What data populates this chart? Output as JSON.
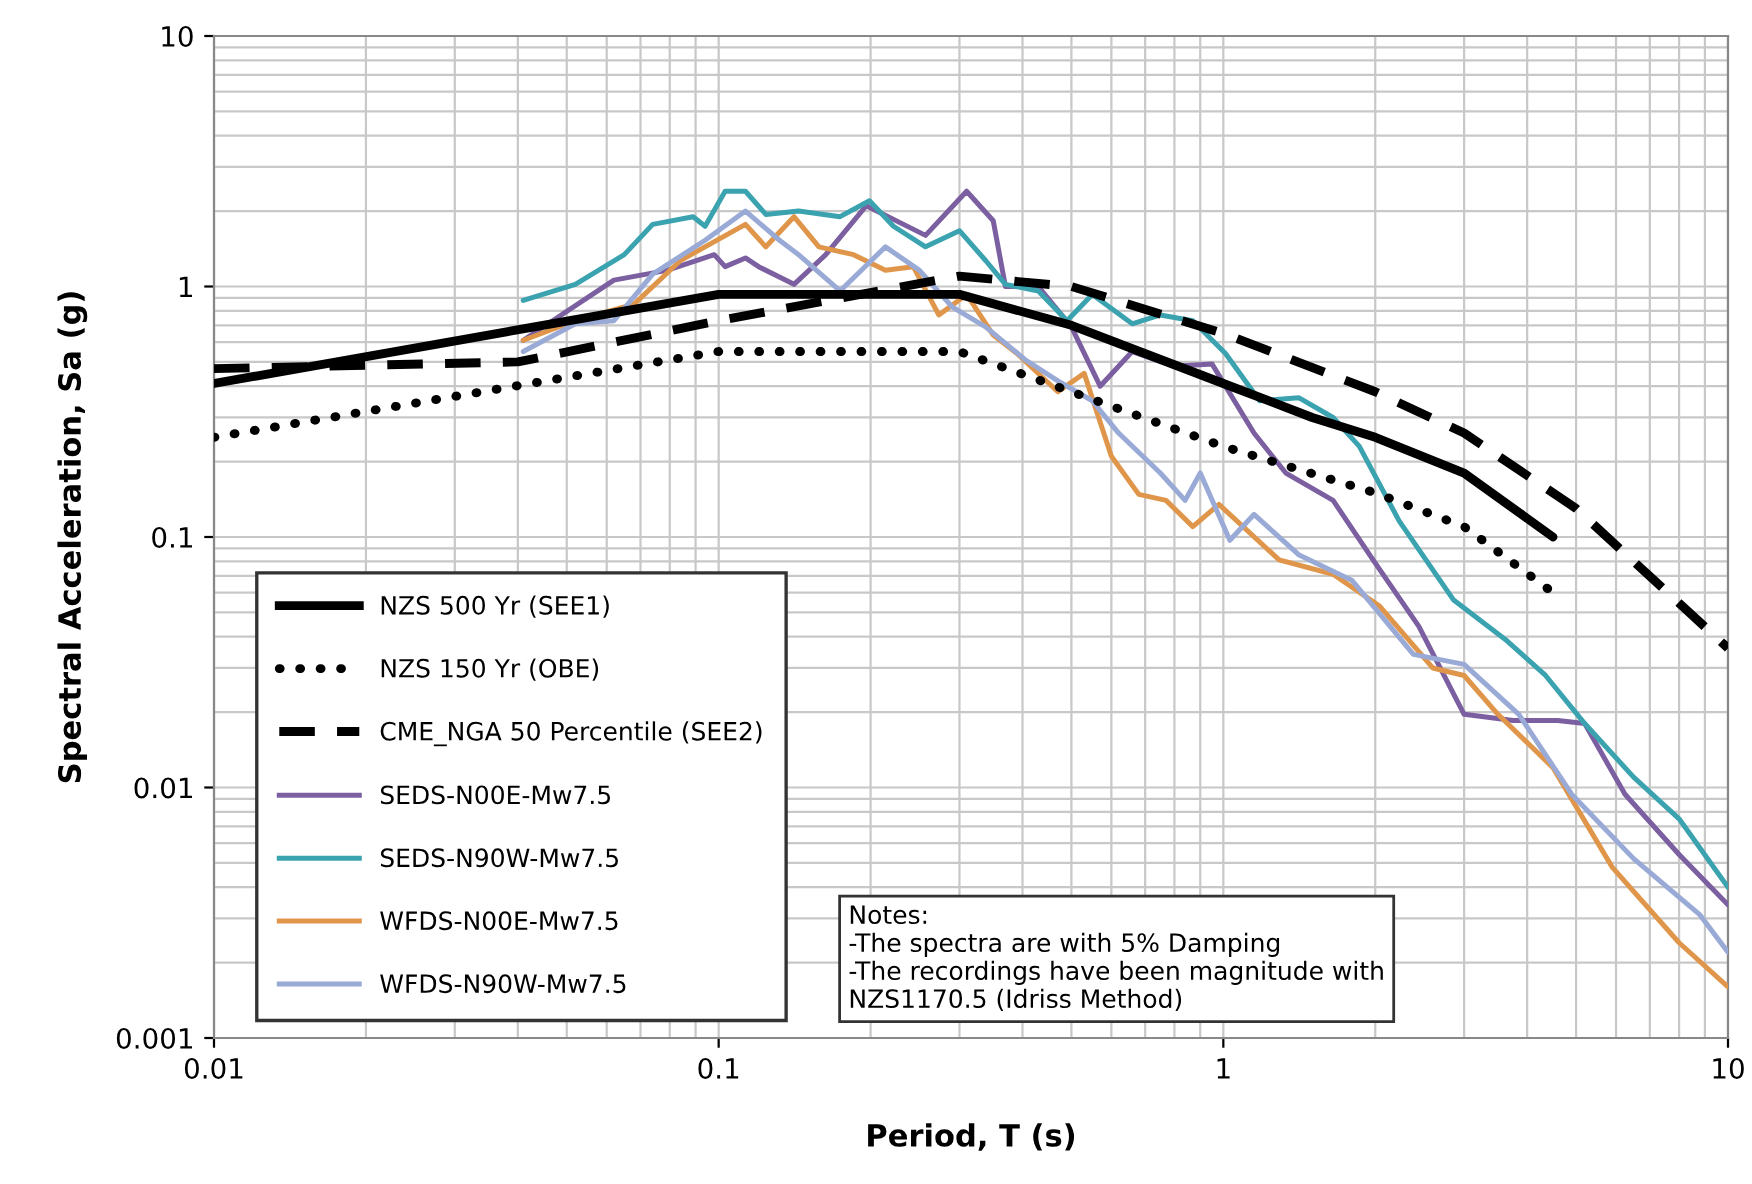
{
  "chart_data": {
    "type": "line",
    "xlabel": "Period, T (s)",
    "ylabel": "Spectral Acceleration, Sa (g)",
    "log": "xy",
    "xlim": [
      0.01,
      10
    ],
    "ylim": [
      0.001,
      10
    ],
    "xticks": [
      0.01,
      0.1,
      1,
      10
    ],
    "yticks": [
      0.001,
      0.01,
      0.1,
      1,
      10
    ],
    "grid": true,
    "legend": "bottom left",
    "marker": "none",
    "series": [
      {
        "name": "NZS 500 Yr (SEE1)",
        "color": "#000000",
        "line_style": "solid",
        "x": [
          0.01,
          0.1,
          0.3,
          0.5,
          1,
          1.5,
          2,
          3,
          4.5
        ],
        "values": [
          0.41,
          0.93,
          0.93,
          0.7,
          0.41,
          0.3,
          0.25,
          0.18,
          0.1
        ]
      },
      {
        "name": "NZS 150 Yr (OBE)",
        "color": "#000000",
        "line_style": "dotted",
        "x": [
          0.01,
          0.1,
          0.3,
          0.5,
          1,
          2,
          3,
          4.5
        ],
        "values": [
          0.25,
          0.55,
          0.55,
          0.38,
          0.23,
          0.15,
          0.11,
          0.06
        ]
      },
      {
        "name": "CME_NGA 50 Percentile (SEE2)",
        "color": "#000000",
        "line_style": "dashed",
        "x": [
          0.01,
          0.04,
          0.1,
          0.3,
          0.5,
          1,
          2,
          3,
          5,
          10
        ],
        "values": [
          0.47,
          0.5,
          0.73,
          1.1,
          1.0,
          0.65,
          0.38,
          0.26,
          0.13,
          0.036
        ]
      },
      {
        "name": "SEDS-N00E-Mw7.5",
        "color": "#7b5fa0",
        "line_style": "solid",
        "x": [
          0.041,
          0.062,
          0.079,
          0.098,
          0.103,
          0.113,
          0.12,
          0.141,
          0.163,
          0.196,
          0.257,
          0.31,
          0.35,
          0.37,
          0.43,
          0.5,
          0.57,
          0.66,
          0.8,
          0.95,
          1.15,
          1.33,
          1.65,
          1.98,
          2.44,
          3.0,
          3.75,
          4.6,
          5.2,
          6.25,
          8,
          10
        ],
        "values": [
          0.61,
          1.06,
          1.16,
          1.34,
          1.2,
          1.3,
          1.2,
          1.02,
          1.34,
          2.1,
          1.6,
          2.4,
          1.83,
          1.0,
          1.0,
          0.69,
          0.4,
          0.55,
          0.48,
          0.49,
          0.26,
          0.18,
          0.14,
          0.081,
          0.044,
          0.0196,
          0.0185,
          0.0185,
          0.018,
          0.0094,
          0.0054,
          0.0034
        ]
      },
      {
        "name": "SEDS-N90W-Mw7.5",
        "color": "#3ba3b0",
        "line_style": "solid",
        "x": [
          0.041,
          0.052,
          0.065,
          0.074,
          0.089,
          0.094,
          0.103,
          0.113,
          0.124,
          0.144,
          0.174,
          0.199,
          0.222,
          0.257,
          0.3,
          0.338,
          0.37,
          0.43,
          0.49,
          0.55,
          0.66,
          0.75,
          0.87,
          1.01,
          1.18,
          1.41,
          1.65,
          1.86,
          2.23,
          2.86,
          3.62,
          4.35,
          5.2,
          6.5,
          8,
          10
        ],
        "values": [
          0.88,
          1.02,
          1.34,
          1.77,
          1.9,
          1.74,
          2.4,
          2.4,
          1.94,
          2.0,
          1.9,
          2.2,
          1.74,
          1.44,
          1.67,
          1.27,
          1.02,
          0.96,
          0.73,
          0.93,
          0.71,
          0.77,
          0.73,
          0.54,
          0.35,
          0.36,
          0.3,
          0.23,
          0.116,
          0.056,
          0.039,
          0.028,
          0.018,
          0.011,
          0.0075,
          0.004
        ]
      },
      {
        "name": "WFDS-N00E-Mw7.5",
        "color": "#e0964a",
        "line_style": "solid",
        "x": [
          0.041,
          0.052,
          0.068,
          0.084,
          0.113,
          0.124,
          0.141,
          0.158,
          0.185,
          0.214,
          0.243,
          0.273,
          0.31,
          0.35,
          0.39,
          0.47,
          0.53,
          0.6,
          0.68,
          0.77,
          0.87,
          0.98,
          1.29,
          1.65,
          2.04,
          2.6,
          3.0,
          3.5,
          4.5,
          5.9,
          8,
          10
        ],
        "values": [
          0.61,
          0.73,
          0.85,
          1.27,
          1.77,
          1.44,
          1.9,
          1.44,
          1.34,
          1.16,
          1.2,
          0.77,
          0.93,
          0.64,
          0.54,
          0.38,
          0.45,
          0.21,
          0.148,
          0.14,
          0.11,
          0.135,
          0.081,
          0.071,
          0.053,
          0.03,
          0.028,
          0.0196,
          0.012,
          0.0048,
          0.0024,
          0.0016
        ]
      },
      {
        "name": "WFDS-N90W-Mw7.5",
        "color": "#9aaad6",
        "line_style": "solid",
        "x": [
          0.041,
          0.052,
          0.062,
          0.074,
          0.094,
          0.113,
          0.132,
          0.144,
          0.174,
          0.214,
          0.25,
          0.29,
          0.338,
          0.405,
          0.47,
          0.55,
          0.62,
          0.75,
          0.84,
          0.9,
          1.03,
          1.15,
          1.41,
          1.8,
          2.38,
          3.0,
          3.85,
          4.9,
          6.5,
          8.8,
          10
        ],
        "values": [
          0.55,
          0.71,
          0.73,
          1.12,
          1.53,
          2.0,
          1.53,
          1.34,
          0.96,
          1.44,
          1.16,
          0.83,
          0.69,
          0.51,
          0.42,
          0.35,
          0.26,
          0.18,
          0.14,
          0.18,
          0.097,
          0.123,
          0.085,
          0.067,
          0.034,
          0.031,
          0.0196,
          0.0094,
          0.0052,
          0.0031,
          0.0022
        ]
      }
    ],
    "annotations": [
      "Notes:\n-The spectra are with 5% Damping\n-The recordings have been magnitude with\nNZS1170.5 (Idriss Method)"
    ]
  }
}
